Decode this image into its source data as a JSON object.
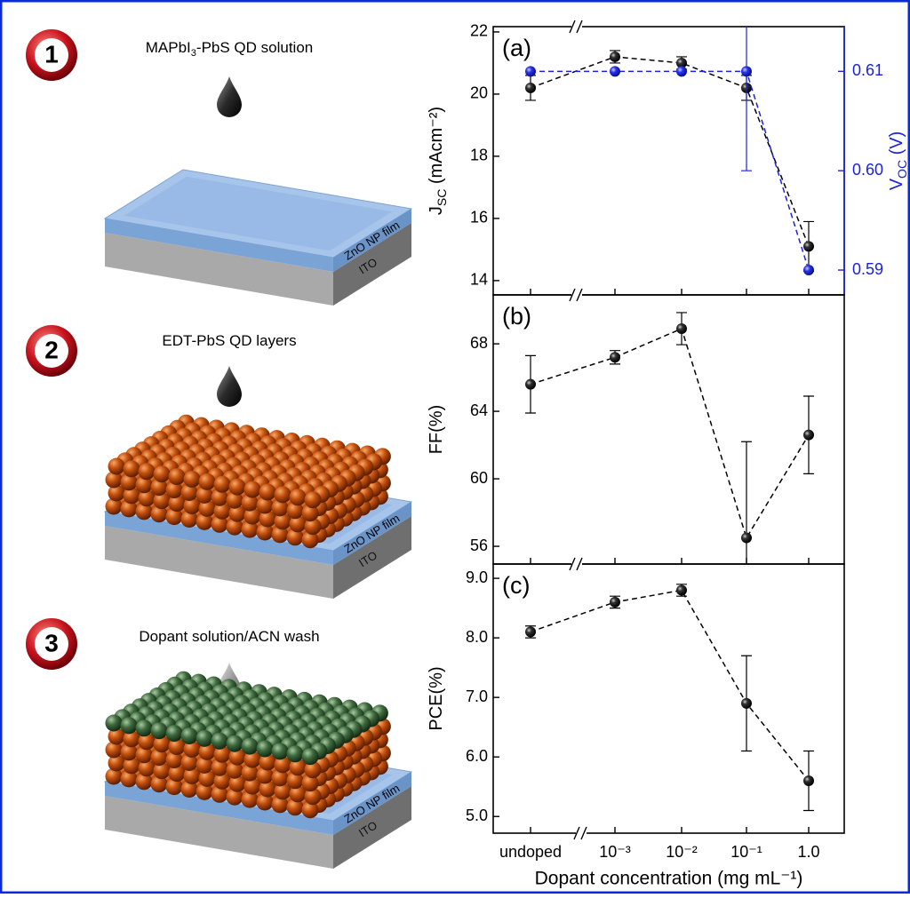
{
  "diagram": {
    "steps": [
      {
        "number": "1",
        "label": [
          "MAPbI",
          "3",
          "-PbS QD solution"
        ]
      },
      {
        "number": "2",
        "label": [
          "EDT-PbS QD layers"
        ]
      },
      {
        "number": "3",
        "label": [
          "Dopant solution/ACN wash"
        ]
      }
    ],
    "zno": "ZnO NP film",
    "ito": "ITO"
  },
  "chart_data": [
    {
      "type": "line",
      "label": "(a)",
      "ylabel": [
        "J",
        "SC",
        " (mAcm⁻²)"
      ],
      "y2label": [
        "V",
        "OC",
        " (V)"
      ],
      "ylim": [
        13.54,
        22.17
      ],
      "yticks": [
        14,
        16,
        18,
        20,
        22
      ],
      "y2lim": [
        0.5875,
        0.6145
      ],
      "y2ticks": [
        0.59,
        {
          "value": 0.6,
          "label": "0.60"
        },
        0.61
      ],
      "y2color": "#1a22e0",
      "dashed": true,
      "series": [
        {
          "color": "#000000",
          "values": [
            20.2,
            21.2,
            21.0,
            20.2,
            15.1
          ],
          "errors": [
            0.4,
            0.2,
            0.2,
            0.4,
            0.8
          ]
        },
        {
          "color": "#1a22e0",
          "axis": "y2",
          "values": [
            0.61,
            0.61,
            0.61,
            0.61,
            0.59
          ],
          "errors": [
            null,
            null,
            null,
            0.01,
            null
          ]
        }
      ]
    },
    {
      "type": "line",
      "label": "(b)",
      "ylabel": [
        "FF(%)"
      ],
      "ylim": [
        54.95,
        70.9
      ],
      "yticks": [
        56,
        60,
        64,
        68
      ],
      "dashed": true,
      "series": [
        {
          "color": "#000000",
          "values": [
            65.6,
            67.2,
            68.9,
            56.5,
            62.6
          ],
          "errors": [
            1.7,
            0.4,
            0.95,
            5.7,
            2.3
          ]
        }
      ]
    },
    {
      "type": "line",
      "label": "(c)",
      "ylabel": [
        "PCE(%)"
      ],
      "ylim": [
        4.72,
        9.24
      ],
      "yticks": [
        {
          "value": 5,
          "label": "5.0"
        },
        {
          "value": 6,
          "label": "6.0"
        },
        {
          "value": 7,
          "label": "7.0"
        },
        {
          "value": 8,
          "label": "8.0"
        },
        {
          "value": 9,
          "label": "9.0"
        }
      ],
      "dashed": true,
      "categories": [
        "undoped",
        "10⁻³",
        "10⁻²",
        "10⁻¹",
        "1.0"
      ],
      "xlabel": "Dopant concentration (mg mL⁻¹)",
      "series": [
        {
          "color": "#000000",
          "values": [
            8.1,
            8.6,
            8.8,
            6.9,
            5.6
          ],
          "errors": [
            0.1,
            0.1,
            0.1,
            0.8,
            0.5
          ]
        }
      ]
    }
  ]
}
